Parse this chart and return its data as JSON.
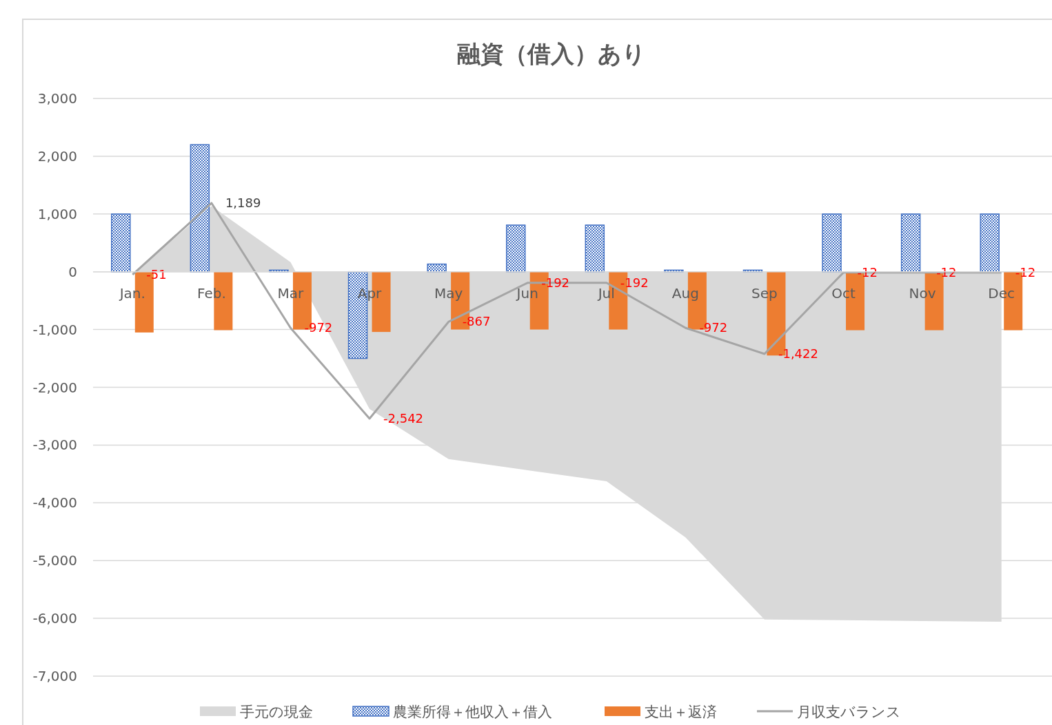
{
  "chart_data": {
    "type": "bar",
    "title": "融資（借入）あり",
    "categories": [
      "Jan.",
      "Feb.",
      "Mar",
      "Apr",
      "May",
      "Jun",
      "Jul",
      "Aug",
      "Sep",
      "Oct",
      "Nov",
      "Dec"
    ],
    "series": [
      {
        "name": "手元の現金",
        "type": "area",
        "color": "#d9d9d9",
        "values": [
          -51,
          1138,
          166,
          -2376,
          -3243,
          -3435,
          -3627,
          -4599,
          -6021,
          -6033,
          -6045,
          -6057
        ]
      },
      {
        "name": "農業所得＋他収入＋借入",
        "color": "#4472c4",
        "values": [
          1000,
          2200,
          28,
          -1500,
          133,
          808,
          808,
          28,
          28,
          1000,
          1000,
          1000
        ]
      },
      {
        "name": "支出＋返済",
        "color": "#ed7d31",
        "values": [
          -1051,
          -1011,
          -1000,
          -1042,
          -1000,
          -1000,
          -1000,
          -1000,
          -1450,
          -1012,
          -1012,
          -1012
        ]
      },
      {
        "name": "月収支バランス",
        "type": "line",
        "color": "#a5a5a5",
        "values": [
          -51,
          1189,
          -972,
          -2542,
          -867,
          -192,
          -192,
          -972,
          -1422,
          -12,
          -12,
          -12
        ],
        "value_labels": [
          "-51",
          "1,189",
          "-972",
          "-2,542",
          "-867",
          "-192",
          "-192",
          "-972",
          "-1,422",
          "-12",
          "-12",
          "-12"
        ]
      }
    ],
    "ylim": [
      -7000,
      3000
    ],
    "yticks": [
      {
        "value": -7000,
        "label": "-7,000"
      },
      {
        "value": -6000,
        "label": "-6,000"
      },
      {
        "value": -5000,
        "label": "-5,000"
      },
      {
        "value": -4000,
        "label": "-4,000"
      },
      {
        "value": -3000,
        "label": "-3,000"
      },
      {
        "value": -2000,
        "label": "-2,000"
      },
      {
        "value": -1000,
        "label": "-1,000"
      },
      0,
      {
        "value": 1000,
        "label": "1,000"
      },
      {
        "value": 2000,
        "label": "2,000"
      },
      {
        "value": 3000,
        "label": "3,000"
      }
    ],
    "grid": "y",
    "legend": "bottom",
    "marker": "none",
    "line_style": "solid"
  }
}
